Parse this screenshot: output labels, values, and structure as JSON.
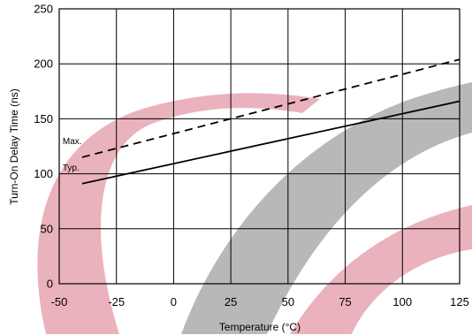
{
  "chart_data": {
    "type": "line",
    "title": "",
    "xlabel": "Temperature (°C)",
    "ylabel": "Turn-On Delay Time (ns)",
    "xlim": [
      -50,
      125
    ],
    "ylim": [
      0,
      250
    ],
    "x_ticks": [
      -50,
      -25,
      0,
      25,
      50,
      75,
      100,
      125
    ],
    "y_ticks": [
      0,
      50,
      100,
      150,
      200,
      250
    ],
    "grid": true,
    "legend": "none",
    "series": [
      {
        "name": "Max.",
        "style": "dashed",
        "color": "#000000",
        "x": [
          -40,
          125
        ],
        "y": [
          115,
          204
        ]
      },
      {
        "name": "Typ.",
        "style": "solid",
        "color": "#000000",
        "x": [
          -40,
          125
        ],
        "y": [
          91,
          166
        ]
      }
    ]
  },
  "watermark": {
    "colors": [
      "#e8aab5",
      "#b4b4b4"
    ]
  }
}
